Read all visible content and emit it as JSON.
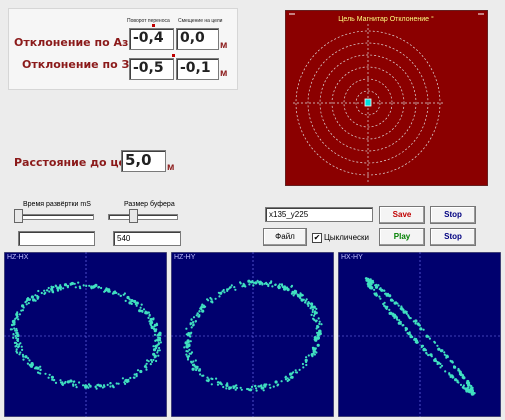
{
  "top_panel": {
    "header_turn": "Поворот переноса",
    "header_offset": "Смещение на цели",
    "azimuth_label": "Отклонение по Азимуту",
    "azimuth_turn": "-0,4",
    "azimuth_offset": "0,0",
    "zenith_label": "Отклонение по Зениту",
    "zenith_turn": "-0,5",
    "zenith_offset": "-0,1",
    "unit": "м"
  },
  "distance": {
    "label": "Расстояние до цели",
    "value": "5,0",
    "unit": "м"
  },
  "target": {
    "title": "Цель Магнитар Отклонение °",
    "background": "#8b0000",
    "marker_color": "#00e0e0"
  },
  "controls": {
    "sweep_label": "Время развёртки mS",
    "sweep_value": "",
    "buffer_label": "Размер буфера",
    "buffer_value": "540",
    "file_value": "x135_y225",
    "save_label": "Save",
    "stop_label_1": "Stop",
    "file_button": "Файл",
    "cyclic_label": "Цыклически",
    "cyclic_checked": "✔",
    "play_label": "Play",
    "stop_label_2": "Stop",
    "save_color": "#c00000",
    "play_color": "#008000",
    "stop_color": "#000080"
  },
  "plots": [
    {
      "title": "HZ-HX"
    },
    {
      "title": "HZ-HY"
    },
    {
      "title": "HX-HY"
    }
  ],
  "plot_colors": {
    "background": "#00006e",
    "points": "#40e0c0",
    "axis": "#8080ff"
  }
}
